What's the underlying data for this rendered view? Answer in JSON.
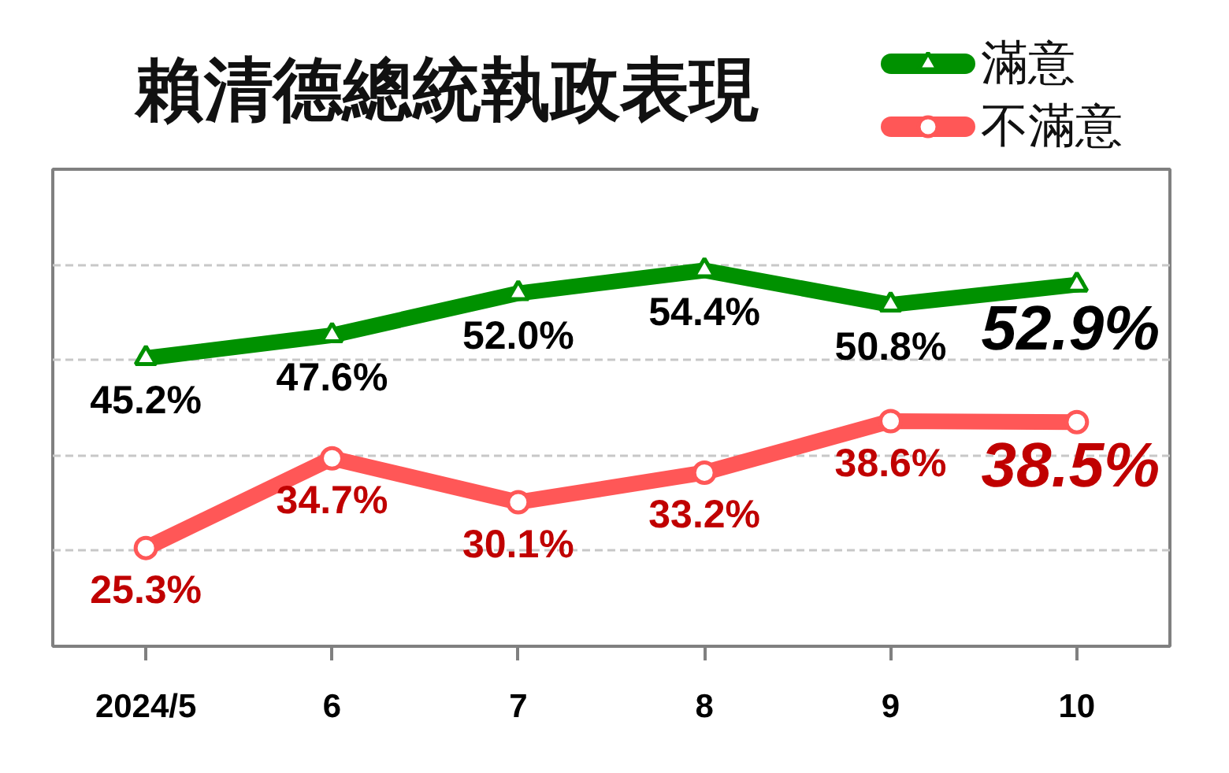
{
  "chart_data": {
    "type": "line",
    "title": "賴清德總統執政表現",
    "categories": [
      "2024/5",
      "6",
      "7",
      "8",
      "9",
      "10"
    ],
    "series": [
      {
        "name": "滿意",
        "color": "#009100",
        "marker": "triangle",
        "values": [
          45.2,
          47.6,
          52.0,
          54.4,
          50.8,
          52.9
        ],
        "value_labels": [
          "45.2%",
          "47.6%",
          "52.0%",
          "54.4%",
          "50.8%",
          "52.9%"
        ]
      },
      {
        "name": "不滿意",
        "color": "#ff5757",
        "marker": "circle",
        "values": [
          25.3,
          34.7,
          30.1,
          33.2,
          38.6,
          38.5
        ],
        "value_labels": [
          "25.3%",
          "34.7%",
          "30.1%",
          "33.2%",
          "38.6%",
          "38.5%"
        ]
      }
    ],
    "ylim": [
      15,
      65
    ],
    "yticks": [
      {
        "value": 25,
        "label": null
      },
      {
        "value": 35,
        "label": null
      },
      {
        "value": 45,
        "label": null
      },
      {
        "value": 55,
        "label": null
      }
    ],
    "tick_labels": "x",
    "grid": "y",
    "legend": "top right"
  }
}
